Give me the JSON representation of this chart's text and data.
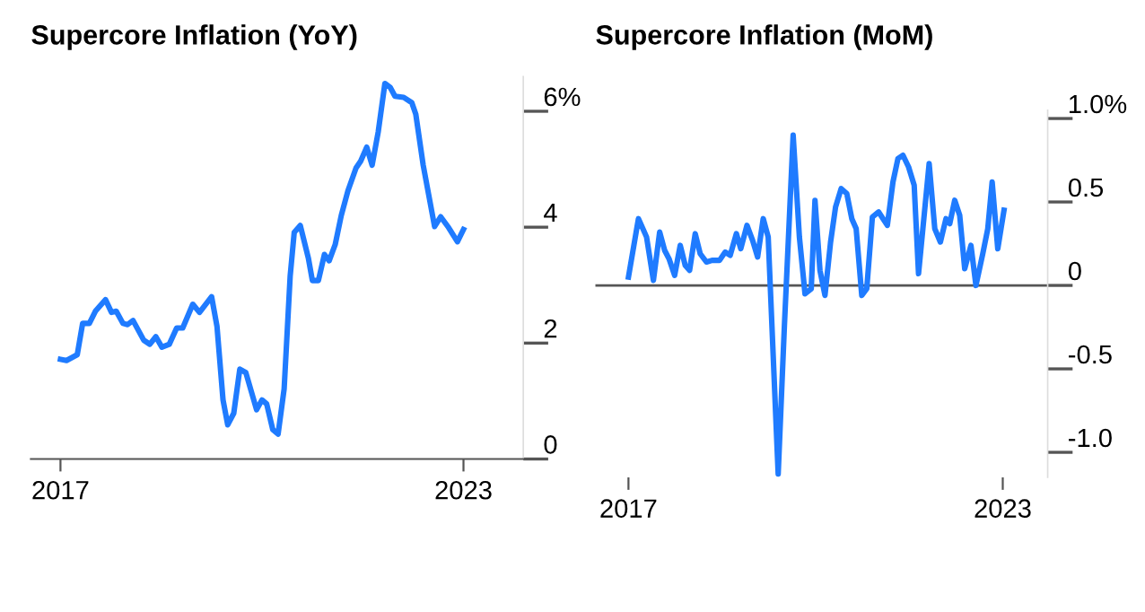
{
  "chart_data": [
    {
      "type": "line",
      "title": "Supercore Inflation (YoY)",
      "series": [
        {
          "color": "#1f7bff",
          "x": [
            2017.0,
            2017.09,
            2017.25,
            2017.33,
            2017.43,
            2017.52,
            2017.67,
            2017.76,
            2017.83,
            2017.93,
            2018.0,
            2018.08,
            2018.24,
            2018.33,
            2018.42,
            2018.51,
            2018.62,
            2018.73,
            2018.82,
            2018.97,
            2019.07,
            2019.25,
            2019.33,
            2019.42,
            2019.49,
            2019.58,
            2019.67,
            2019.76,
            2019.92,
            2020.0,
            2020.07,
            2020.16,
            2020.24,
            2020.33,
            2020.42,
            2020.48,
            2020.57,
            2020.69,
            2020.75,
            2020.84,
            2020.93,
            2021.0,
            2021.09,
            2021.18,
            2021.28,
            2021.4,
            2021.47,
            2021.56,
            2021.64,
            2021.73,
            2021.83,
            2021.91,
            2021.98,
            2022.11,
            2022.23,
            2022.29,
            2022.4,
            2022.49,
            2022.57,
            2022.66,
            2022.78,
            2022.91,
            2023.0
          ],
          "values": [
            1.72,
            1.7,
            1.8,
            2.34,
            2.34,
            2.55,
            2.75,
            2.53,
            2.55,
            2.34,
            2.32,
            2.39,
            2.05,
            1.98,
            2.11,
            1.93,
            1.98,
            2.26,
            2.26,
            2.67,
            2.53,
            2.8,
            2.29,
            1.02,
            0.59,
            0.79,
            1.55,
            1.49,
            0.85,
            1.02,
            0.95,
            0.51,
            0.43,
            1.21,
            3.16,
            3.91,
            4.03,
            3.47,
            3.08,
            3.08,
            3.53,
            3.42,
            3.7,
            4.2,
            4.63,
            5.02,
            5.14,
            5.38,
            5.07,
            5.64,
            6.48,
            6.41,
            6.26,
            6.24,
            6.15,
            5.95,
            5.07,
            4.51,
            4.01,
            4.18,
            3.99,
            3.75,
            3.96
          ]
        }
      ],
      "xlim": [
        2016.56,
        2023.89
      ],
      "xticks": [
        2017,
        2023
      ],
      "ylim": [
        0,
        6.6
      ],
      "yticks": [
        0,
        2,
        4,
        {
          "value": 6,
          "label": "6%"
        }
      ],
      "grid": false,
      "legend": false
    },
    {
      "type": "line",
      "title": "Supercore Inflation (MoM)",
      "series": [
        {
          "color": "#1f7bff",
          "x": [
            2017.0,
            2017.16,
            2017.29,
            2017.4,
            2017.5,
            2017.58,
            2017.65,
            2017.74,
            2017.83,
            2017.91,
            2017.98,
            2018.07,
            2018.15,
            2018.25,
            2018.34,
            2018.46,
            2018.55,
            2018.63,
            2018.73,
            2018.8,
            2018.9,
            2018.99,
            2019.07,
            2019.16,
            2019.24,
            2019.4,
            2019.5,
            2019.64,
            2019.74,
            2019.83,
            2019.93,
            2019.99,
            2020.07,
            2020.15,
            2020.24,
            2020.32,
            2020.41,
            2020.5,
            2020.58,
            2020.65,
            2020.74,
            2020.82,
            2020.91,
            2021.01,
            2021.15,
            2021.24,
            2021.32,
            2021.4,
            2021.49,
            2021.58,
            2021.65,
            2021.82,
            2021.91,
            2022.0,
            2022.09,
            2022.15,
            2022.23,
            2022.31,
            2022.39,
            2022.49,
            2022.57,
            2022.68,
            2022.76,
            2022.83,
            2022.92,
            2023.02
          ],
          "values": [
            0.05,
            0.4,
            0.29,
            0.03,
            0.32,
            0.21,
            0.16,
            0.06,
            0.24,
            0.12,
            0.09,
            0.31,
            0.19,
            0.14,
            0.15,
            0.15,
            0.2,
            0.18,
            0.31,
            0.22,
            0.36,
            0.27,
            0.17,
            0.4,
            0.29,
            -1.13,
            -0.24,
            0.9,
            0.29,
            -0.05,
            -0.02,
            0.51,
            0.09,
            -0.06,
            0.26,
            0.47,
            0.58,
            0.55,
            0.4,
            0.34,
            -0.06,
            -0.02,
            0.41,
            0.44,
            0.36,
            0.62,
            0.76,
            0.78,
            0.71,
            0.6,
            0.07,
            0.73,
            0.34,
            0.26,
            0.4,
            0.37,
            0.51,
            0.42,
            0.1,
            0.24,
            0.0,
            0.19,
            0.34,
            0.62,
            0.22,
            0.45
          ]
        }
      ],
      "xlim": [
        2016.47,
        2023.72
      ],
      "xticks": [
        2017,
        2023
      ],
      "ylim": [
        -1.15,
        1.05
      ],
      "yticks": [
        {
          "value": -1.0,
          "label": "-1.0"
        },
        -0.5,
        0,
        0.5,
        {
          "value": 1.0,
          "label": "1.0%"
        }
      ],
      "ref_lines": [
        {
          "axis": "y",
          "value": 0,
          "color": "#555555"
        }
      ],
      "grid": false,
      "legend": false
    }
  ]
}
